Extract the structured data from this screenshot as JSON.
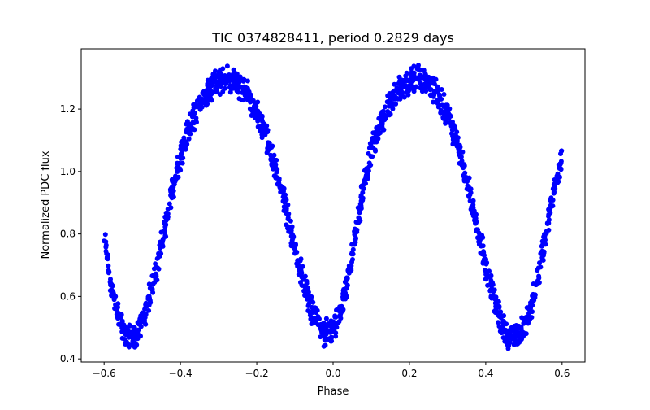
{
  "chart_data": {
    "type": "scatter",
    "title": "TIC 0374828411, period 0.2829 days",
    "xlabel": "Phase",
    "ylabel": "Normalized PDC flux",
    "xlim": [
      -0.66,
      0.66
    ],
    "ylim": [
      0.39,
      1.393
    ],
    "xticks": [
      -0.6,
      -0.4,
      -0.2,
      0.0,
      0.2,
      0.4,
      0.6
    ],
    "xtick_labels": [
      "−0.6",
      "−0.4",
      "−0.2",
      "0.0",
      "0.2",
      "0.4",
      "0.6"
    ],
    "yticks": [
      0.4,
      0.6,
      0.8,
      1.0,
      1.2
    ],
    "ytick_labels": [
      "0.4",
      "0.6",
      "0.8",
      "1.0",
      "1.2"
    ],
    "grid": false,
    "marker_color": "#0000ff",
    "scatter_spread": 0.05,
    "points_per_segment": 26,
    "series": [
      {
        "name": "flux",
        "x": [
          -0.6,
          -0.58,
          -0.56,
          -0.54,
          -0.52,
          -0.5,
          -0.48,
          -0.46,
          -0.44,
          -0.42,
          -0.4,
          -0.38,
          -0.36,
          -0.34,
          -0.32,
          -0.3,
          -0.28,
          -0.26,
          -0.24,
          -0.22,
          -0.2,
          -0.18,
          -0.16,
          -0.14,
          -0.12,
          -0.1,
          -0.08,
          -0.06,
          -0.04,
          -0.02,
          0.0,
          0.02,
          0.04,
          0.06,
          0.08,
          0.1,
          0.12,
          0.14,
          0.16,
          0.18,
          0.2,
          0.22,
          0.24,
          0.26,
          0.28,
          0.3,
          0.32,
          0.34,
          0.36,
          0.38,
          0.4,
          0.42,
          0.44,
          0.46,
          0.48,
          0.5,
          0.52,
          0.54,
          0.56,
          0.58,
          0.6
        ],
        "y": [
          0.8,
          0.62,
          0.52,
          0.48,
          0.47,
          0.52,
          0.6,
          0.7,
          0.82,
          0.95,
          1.05,
          1.13,
          1.19,
          1.24,
          1.27,
          1.29,
          1.3,
          1.29,
          1.27,
          1.24,
          1.19,
          1.13,
          1.05,
          0.96,
          0.86,
          0.76,
          0.66,
          0.57,
          0.51,
          0.48,
          0.49,
          0.55,
          0.66,
          0.8,
          0.95,
          1.06,
          1.14,
          1.2,
          1.24,
          1.27,
          1.29,
          1.3,
          1.29,
          1.27,
          1.23,
          1.18,
          1.11,
          1.02,
          0.92,
          0.81,
          0.7,
          0.6,
          0.52,
          0.47,
          0.47,
          0.5,
          0.57,
          0.68,
          0.82,
          0.95,
          1.05
        ]
      }
    ]
  }
}
